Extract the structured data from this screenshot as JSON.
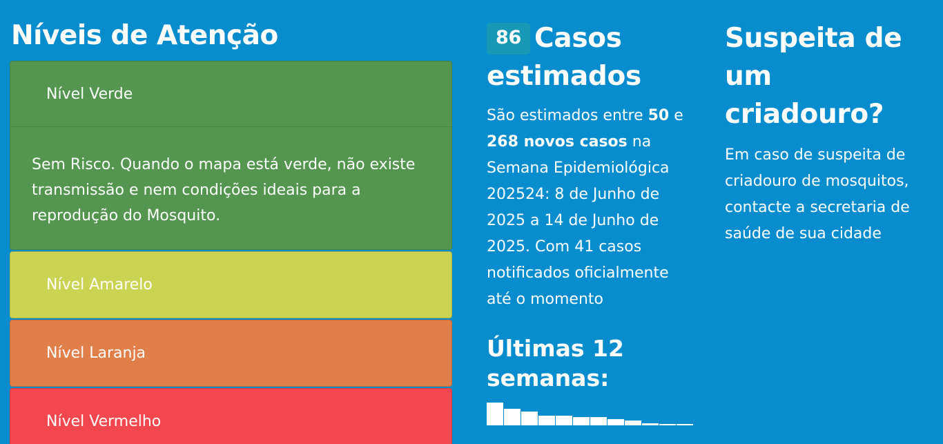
{
  "levels": {
    "title": "Níveis de Atenção",
    "items": [
      {
        "label": "Nível Verde",
        "description": "Sem Risco. Quando o mapa está verde, não existe transmissão e nem condições ideais para a reprodução do Mosquito."
      },
      {
        "label": "Nível Amarelo"
      },
      {
        "label": "Nível Laranja"
      },
      {
        "label": "Nível Vermelho"
      }
    ],
    "colors": {
      "green": "#549650",
      "yellow": "#cbd452",
      "orange": "#e07f49",
      "red": "#f2474e"
    }
  },
  "cases": {
    "count": "86",
    "title": "Casos estimados",
    "text_prefix": "São estimados entre ",
    "min": "50",
    "text_mid": " e ",
    "max_label": "268 novos casos",
    "text_suffix": " na Semana Epidemiológica 202524: 8 de Junho de 2025 a 14 de Junho de 2025. Com 41 casos notificados oficialmente até o momento",
    "weeks_title": "Últimas 12 semanas:",
    "weekly_bar_levels": [
      1.0,
      0.74,
      0.6,
      0.43,
      0.43,
      0.37,
      0.37,
      0.27,
      0.2,
      0.08,
      0.06,
      0.06
    ]
  },
  "breeding": {
    "title": "Suspeita de um criadouro?",
    "text": "Em caso de suspeita de criadouro de mosquitos, contacte a secretaria de saúde de sua cidade"
  },
  "colors": {
    "background": "#078dcd",
    "badge": "#1798b4"
  }
}
